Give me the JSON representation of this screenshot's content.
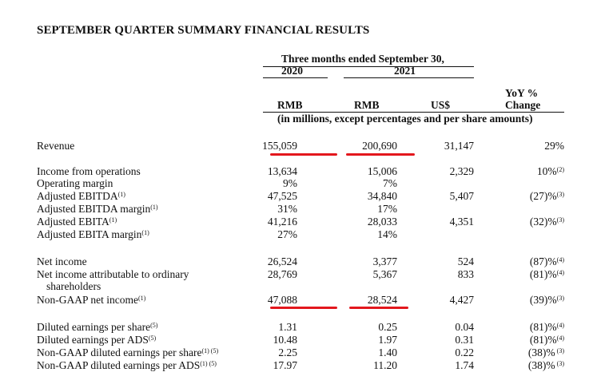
{
  "title": "SEPTEMBER QUARTER SUMMARY FINANCIAL RESULTS",
  "header": {
    "period": "Three months ended September 30,",
    "year_2020": "2020",
    "year_2021": "2021",
    "yoy_line1": "YoY %",
    "yoy_line2": "Change",
    "cur_rmb_2020": "RMB",
    "cur_rmb_2021": "RMB",
    "cur_usd": "US$",
    "units": "(in millions, except percentages and per share amounts)"
  },
  "rows": {
    "revenue": {
      "label": "Revenue",
      "sup": "",
      "v2020": "155,059",
      "v2021": "200,690",
      "usd": "31,147",
      "yoy": "29%",
      "yoy_sup": ""
    },
    "income_ops": {
      "label": "Income from operations",
      "sup": "",
      "v2020": "13,634",
      "v2021": "15,006",
      "usd": "2,329",
      "yoy": "10%",
      "yoy_sup": "(2)"
    },
    "op_margin": {
      "label": "Operating margin",
      "sup": "",
      "v2020": "9%",
      "v2021": "7%",
      "usd": "",
      "yoy": "",
      "yoy_sup": ""
    },
    "adj_ebitda": {
      "label": "Adjusted EBITDA",
      "sup": "(1)",
      "v2020": "47,525",
      "v2021": "34,840",
      "usd": "5,407",
      "yoy": "(27)%",
      "yoy_sup": "(3)"
    },
    "adj_ebitda_margin": {
      "label": "Adjusted EBITDA margin",
      "sup": "(1)",
      "v2020": "31%",
      "v2021": "17%",
      "usd": "",
      "yoy": "",
      "yoy_sup": ""
    },
    "adj_ebita": {
      "label": "Adjusted EBITA",
      "sup": "(1)",
      "v2020": "41,216",
      "v2021": "28,033",
      "usd": "4,351",
      "yoy": "(32)%",
      "yoy_sup": "(3)"
    },
    "adj_ebita_margin": {
      "label": "Adjusted EBITA margin",
      "sup": "(1)",
      "v2020": "27%",
      "v2021": "14%",
      "usd": "",
      "yoy": "",
      "yoy_sup": ""
    },
    "net_income": {
      "label": "Net income",
      "sup": "",
      "v2020": "26,524",
      "v2021": "3,377",
      "usd": "524",
      "yoy": "(87)%",
      "yoy_sup": "(4)"
    },
    "ni_ordinary": {
      "label": "Net income attributable to ordinary",
      "label2": "shareholders",
      "sup": "",
      "v2020": "28,769",
      "v2021": "5,367",
      "usd": "833",
      "yoy": "(81)%",
      "yoy_sup": "(4)"
    },
    "non_gaap_ni": {
      "label": "Non-GAAP net income",
      "sup": "(1)",
      "v2020": "47,088",
      "v2021": "28,524",
      "usd": "4,427",
      "yoy": "(39)%",
      "yoy_sup": "(3)"
    },
    "diluted_eps_share": {
      "label": "Diluted earnings per share",
      "sup": "(5)",
      "v2020": "1.31",
      "v2021": "0.25",
      "usd": "0.04",
      "yoy": "(81)%",
      "yoy_sup": "(4)"
    },
    "diluted_eps_ads": {
      "label": "Diluted earnings per ADS",
      "sup": "(5)",
      "v2020": "10.48",
      "v2021": "1.97",
      "usd": "0.31",
      "yoy": "(81)%",
      "yoy_sup": "(4)"
    },
    "ng_diluted_share": {
      "label": "Non-GAAP diluted earnings per share",
      "sup": "(1) (5)",
      "v2020": "2.25",
      "v2021": "1.40",
      "usd": "0.22",
      "yoy": "(38)%",
      "yoy_sup": " (3)"
    },
    "ng_diluted_ads": {
      "label": "Non-GAAP diluted earnings per ADS",
      "sup": "(1) (5)",
      "v2020": "17.97",
      "v2021": "11.20",
      "usd": "1.74",
      "yoy": "(38)%",
      "yoy_sup": " (3)"
    }
  },
  "colors": {
    "text": "#111111",
    "highlight": "#e3171d"
  }
}
